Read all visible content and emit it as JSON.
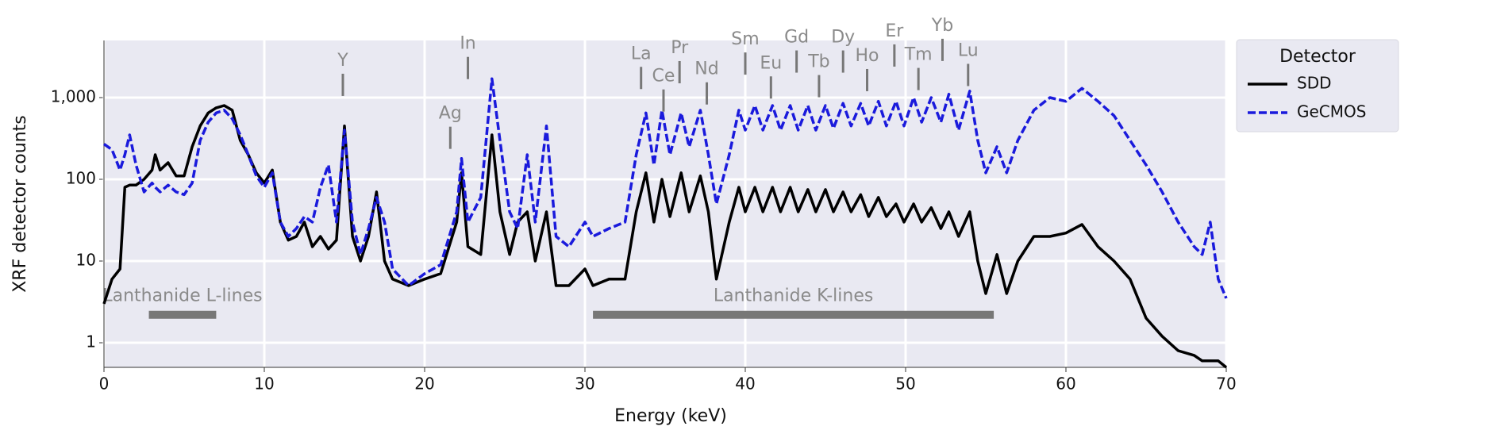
{
  "chart_data": {
    "type": "line",
    "xlabel": "Energy (keV)",
    "ylabel": "XRF detector counts",
    "log_y": true,
    "grid": true,
    "xlim": [
      0,
      70
    ],
    "xticks": [
      0,
      10,
      20,
      30,
      40,
      50,
      60,
      70
    ],
    "ylim": [
      0.5,
      5000
    ],
    "yticks": [
      1,
      10,
      100,
      {
        "value": 1000,
        "label": "1,000"
      }
    ],
    "legend_title": "Detector",
    "legend_position": "right",
    "x": [
      0,
      0.5,
      1,
      1.3,
      1.6,
      2,
      2.5,
      3,
      3.2,
      3.5,
      4,
      4.5,
      5,
      5.5,
      6,
      6.5,
      7,
      7.5,
      8,
      8.5,
      9,
      9.5,
      10,
      10.5,
      11,
      11.5,
      12,
      12.5,
      13,
      13.5,
      14,
      14.5,
      15,
      15.5,
      16,
      16.5,
      17,
      17.5,
      18,
      19,
      20,
      21,
      22,
      22.3,
      22.7,
      23.5,
      24.2,
      24.7,
      25.3,
      25.8,
      26.4,
      26.9,
      27.6,
      28.2,
      29,
      30,
      30.5,
      31.5,
      32.5,
      33.2,
      33.8,
      34.3,
      34.8,
      35.3,
      36,
      36.5,
      37.2,
      37.7,
      38.2,
      39,
      39.6,
      40,
      40.6,
      41.1,
      41.7,
      42.2,
      42.8,
      43.3,
      43.9,
      44.4,
      45,
      45.5,
      46.1,
      46.6,
      47.2,
      47.7,
      48.3,
      48.8,
      49.4,
      49.9,
      50.5,
      51,
      51.6,
      52.2,
      52.7,
      53.3,
      54,
      54.5,
      55,
      55.7,
      56.3,
      57,
      58,
      59,
      60,
      61,
      62,
      63,
      64,
      65,
      66,
      67,
      68,
      68.5,
      69,
      69.5,
      70
    ],
    "series": [
      {
        "name": "SDD",
        "color": "#000000",
        "line_style": "solid",
        "values": [
          3,
          6,
          8,
          80,
          85,
          85,
          100,
          130,
          200,
          130,
          160,
          110,
          110,
          250,
          450,
          650,
          750,
          800,
          700,
          300,
          200,
          120,
          90,
          130,
          30,
          18,
          20,
          30,
          15,
          20,
          14,
          18,
          450,
          20,
          10,
          20,
          70,
          10,
          6,
          5,
          6,
          7,
          30,
          120,
          15,
          12,
          350,
          40,
          12,
          30,
          40,
          10,
          40,
          5,
          5,
          8,
          5,
          6,
          6,
          40,
          120,
          30,
          100,
          35,
          120,
          40,
          110,
          40,
          6,
          30,
          80,
          40,
          80,
          40,
          80,
          40,
          80,
          40,
          75,
          40,
          75,
          40,
          70,
          40,
          65,
          35,
          60,
          35,
          50,
          30,
          50,
          30,
          45,
          25,
          40,
          20,
          40,
          10,
          4,
          12,
          4,
          10,
          20,
          20,
          22,
          28,
          15,
          10,
          6,
          2,
          1.2,
          0.8,
          0.7,
          0.6,
          0.6,
          0.6,
          0.5
        ]
      },
      {
        "name": "GeCMOS",
        "color": "#1a1adc",
        "line_style": "dashed",
        "values": [
          270,
          230,
          130,
          200,
          350,
          150,
          70,
          90,
          80,
          70,
          85,
          70,
          65,
          90,
          300,
          500,
          650,
          700,
          550,
          350,
          200,
          110,
          80,
          120,
          30,
          20,
          25,
          35,
          30,
          80,
          150,
          30,
          400,
          30,
          12,
          25,
          60,
          30,
          8,
          5,
          7,
          9,
          40,
          180,
          30,
          60,
          1700,
          300,
          40,
          25,
          200,
          30,
          450,
          20,
          15,
          30,
          20,
          25,
          30,
          200,
          650,
          150,
          700,
          200,
          650,
          250,
          700,
          200,
          50,
          200,
          700,
          400,
          800,
          400,
          800,
          400,
          800,
          400,
          800,
          400,
          800,
          420,
          850,
          450,
          850,
          450,
          900,
          450,
          900,
          450,
          1000,
          500,
          1000,
          500,
          1100,
          400,
          1200,
          300,
          120,
          250,
          120,
          300,
          700,
          1000,
          900,
          1300,
          900,
          600,
          300,
          150,
          70,
          30,
          15,
          12,
          30,
          6,
          3.5
        ]
      }
    ],
    "annotations": [
      {
        "text": "Y",
        "x": 14.9,
        "y": 2800
      },
      {
        "text": "Ag",
        "x": 21.6,
        "y": 630
      },
      {
        "text": "In",
        "x": 22.7,
        "y": 4500
      },
      {
        "text": "La",
        "x": 33.5,
        "y": 3400
      },
      {
        "text": "Ce",
        "x": 34.9,
        "y": 1800
      },
      {
        "text": "Pr",
        "x": 35.9,
        "y": 4000
      },
      {
        "text": "Nd",
        "x": 37.6,
        "y": 2200
      },
      {
        "text": "Sm",
        "x": 40.0,
        "y": 5100
      },
      {
        "text": "Eu",
        "x": 41.6,
        "y": 2600
      },
      {
        "text": "Gd",
        "x": 43.2,
        "y": 5400
      },
      {
        "text": "Tb",
        "x": 44.6,
        "y": 2700
      },
      {
        "text": "Dy",
        "x": 46.1,
        "y": 5400
      },
      {
        "text": "Ho",
        "x": 47.6,
        "y": 3200
      },
      {
        "text": "Er",
        "x": 49.3,
        "y": 6400
      },
      {
        "text": "Tm",
        "x": 50.8,
        "y": 3300
      },
      {
        "text": "Yb",
        "x": 52.3,
        "y": 7500
      },
      {
        "text": "Lu",
        "x": 53.9,
        "y": 3700
      }
    ],
    "ranges": [
      {
        "text": "Lanthanide L-lines",
        "x": [
          2.8,
          7.0
        ],
        "y": 2.2,
        "label_y": 3.7
      },
      {
        "text": "Lanthanide K-lines",
        "x": [
          30.5,
          55.5
        ],
        "y": 2.2,
        "label_y": 3.7
      }
    ]
  }
}
